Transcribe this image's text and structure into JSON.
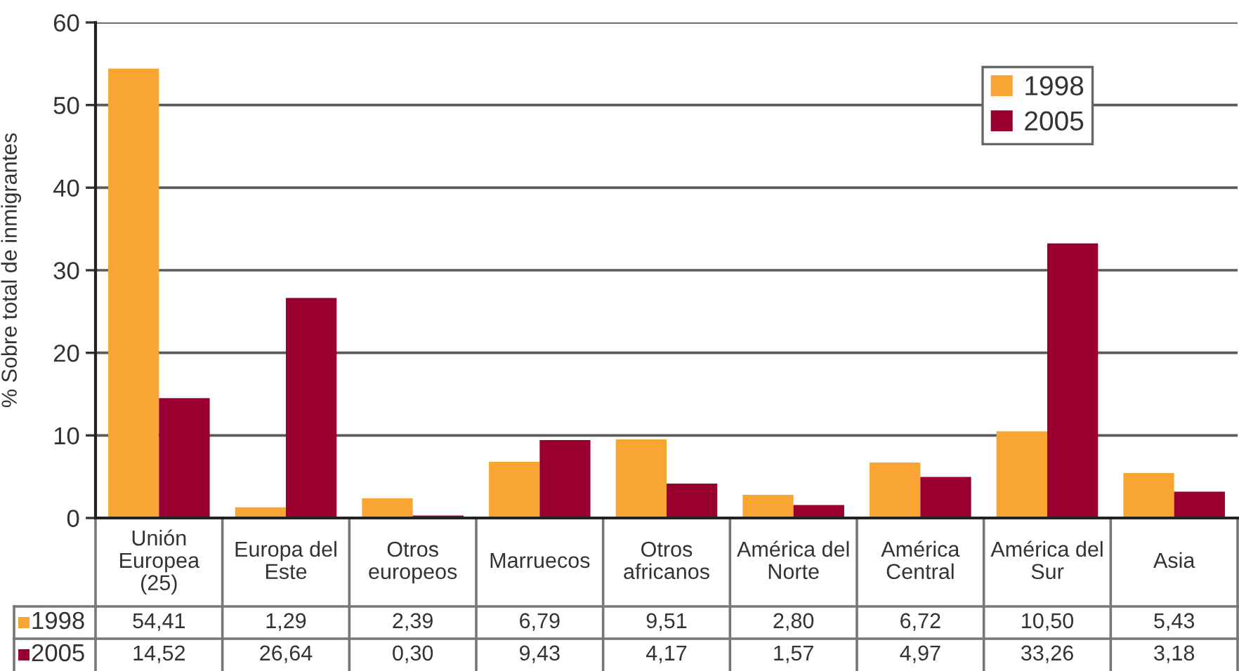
{
  "chart_data": {
    "type": "bar",
    "ylabel": "% Sobre total de inmigrantes",
    "categories": [
      "Unión Europea (25)",
      "Europa del Este",
      "Otros europeos",
      "Marruecos",
      "Otros africanos",
      "América del Norte",
      "América Central",
      "América del Sur",
      "Asia"
    ],
    "series": [
      {
        "name": "1998",
        "color": "#f9a533",
        "values": [
          54.41,
          1.29,
          2.39,
          6.79,
          9.51,
          2.8,
          6.72,
          10.5,
          5.43
        ],
        "value_labels": [
          "54,41",
          "1,29",
          "2,39",
          "6,79",
          "9,51",
          "2,80",
          "6,72",
          "10,50",
          "5,43"
        ]
      },
      {
        "name": "2005",
        "color": "#990030",
        "values": [
          14.52,
          26.64,
          0.3,
          9.43,
          4.17,
          1.57,
          4.97,
          33.26,
          3.18
        ],
        "value_labels": [
          "14,52",
          "26,64",
          "0,30",
          "9,43",
          "4,17",
          "1,57",
          "4,97",
          "33,26",
          "3,18"
        ]
      }
    ],
    "ylim": [
      0,
      60
    ],
    "yticks": [
      0,
      10,
      20,
      30,
      40,
      50,
      60
    ],
    "grid": "y",
    "legend": "top right"
  }
}
